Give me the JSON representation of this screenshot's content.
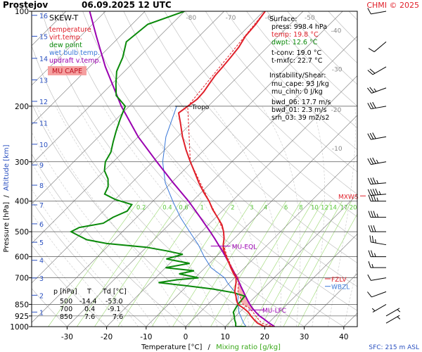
{
  "header": {
    "station": "Prostejov",
    "datetime": "06.09.2025 12 UTC",
    "copyright": "CHMI © 2025"
  },
  "legend": {
    "title": "SKEW-T",
    "items": [
      {
        "label": "temperature",
        "color": "#e0202a"
      },
      {
        "label": "virt.temp.",
        "color": "#e0202a"
      },
      {
        "label": "dew point",
        "color": "#0a8a0a"
      },
      {
        "label": "wet bulb temp.",
        "color": "#3a78d8"
      },
      {
        "label": "updraft v.temp.",
        "color": "#9a00b0"
      }
    ],
    "mucape_label": "MU CAPE",
    "mucape_color": "#f5a0a0"
  },
  "surface": {
    "title": "Surface:",
    "lines": [
      {
        "text": "press: 998.4 hPa",
        "color": "#000000"
      },
      {
        "text": "temp: 19.8 °C",
        "color": "#e0202a"
      },
      {
        "text": "dwpt: 12.6 °C",
        "color": "#0a8a0a"
      },
      {
        "text": "t-conv: 19.0 °C",
        "color": "#000000"
      },
      {
        "text": "t-mxfc: 22.7 °C",
        "color": "#000000"
      }
    ]
  },
  "instability": {
    "title": "Instability/Shear:",
    "lines": [
      "mu_cape: 93 J/kg",
      "mu_cinh: 0 J/kg",
      "bwd_06: 17.7 m/s",
      "bwd_01: 2.3 m/s",
      "srh_03: 39 m2/s2"
    ]
  },
  "table": {
    "headers": [
      "p [hPa]",
      "T",
      "Td [°C]"
    ],
    "rows": [
      [
        "500",
        "-14.4",
        "-53.0"
      ],
      [
        "700",
        "0.4",
        "-9.1"
      ],
      [
        "850",
        "7.6",
        "7.6"
      ]
    ]
  },
  "axes": {
    "ylabel_pressure": "Pressure [hPa]",
    "ylabel_separator": "/",
    "ylabel_altitude": "Altitude [km]",
    "xlabel_temperature": "Temperature [°C]",
    "xlabel_separator": "/",
    "xlabel_mixing": "Mixing ratio [g/kg]",
    "sfc": "SFC: 215 m ASL"
  },
  "colors": {
    "temperature": "#e0202a",
    "dewpoint": "#0a8a0a",
    "wetbulb": "#3a78d8",
    "parcel": "#9a00b0",
    "isotherm": "#777777",
    "dry_adiabat": "#b8b8b8",
    "moist_adiabat": "#c8c8c8",
    "mixing_ratio": "#9ad870",
    "mixing_label": "#58c838",
    "level_label": "#9a00b0",
    "mxws": "#e0202a",
    "fzlv": "#e0202a",
    "wbzl": "#3a78d8",
    "wind_barb": "#000000"
  },
  "chart_data": {
    "type": "skew-t",
    "pressure_ticks": [
      100,
      200,
      300,
      400,
      500,
      600,
      700,
      850,
      925,
      1000
    ],
    "altitude_ticks_km": [
      1,
      2,
      3,
      4,
      5,
      6,
      7,
      8,
      9,
      10,
      11,
      12,
      13,
      14,
      15,
      16
    ],
    "temperature_ticks": [
      -30,
      -20,
      -10,
      0,
      10,
      20,
      30,
      40
    ],
    "skewed_isotherm_labels": [
      -80,
      -70,
      -60,
      -50,
      -40,
      -30,
      -20,
      -10
    ],
    "mixing_ratio_labels": [
      "0.2",
      "0.4",
      "0.6",
      "1",
      "2",
      "3",
      "4",
      "6",
      "8",
      "10",
      "12",
      "14",
      "17",
      "20",
      "25"
    ],
    "temperature_profile": [
      [
        1000,
        22
      ],
      [
        998.4,
        19.8
      ],
      [
        975,
        17.3
      ],
      [
        950,
        15.5
      ],
      [
        925,
        13.8
      ],
      [
        900,
        12.2
      ],
      [
        875,
        10.1
      ],
      [
        850,
        7.6
      ],
      [
        825,
        6.2
      ],
      [
        800,
        5.0
      ],
      [
        775,
        3.6
      ],
      [
        750,
        2.6
      ],
      [
        725,
        1.6
      ],
      [
        700,
        0.4
      ],
      [
        675,
        -1.6
      ],
      [
        650,
        -3.5
      ],
      [
        625,
        -5.4
      ],
      [
        600,
        -7.4
      ],
      [
        575,
        -9.5
      ],
      [
        550,
        -11.2
      ],
      [
        525,
        -12.6
      ],
      [
        500,
        -14.4
      ],
      [
        475,
        -16.6
      ],
      [
        450,
        -19.6
      ],
      [
        425,
        -22.8
      ],
      [
        400,
        -25.8
      ],
      [
        375,
        -29.4
      ],
      [
        350,
        -33.0
      ],
      [
        325,
        -36.6
      ],
      [
        300,
        -40.5
      ],
      [
        275,
        -44.6
      ],
      [
        250,
        -48.8
      ],
      [
        225,
        -53.0
      ],
      [
        210,
        -55.8
      ],
      [
        200,
        -55.2
      ],
      [
        190,
        -54.6
      ],
      [
        180,
        -54.8
      ],
      [
        170,
        -55.4
      ],
      [
        160,
        -56.0
      ],
      [
        150,
        -56.3
      ],
      [
        140,
        -56.7
      ],
      [
        130,
        -57.2
      ],
      [
        120,
        -58.3
      ],
      [
        110,
        -58.7
      ],
      [
        100,
        -59.6
      ]
    ],
    "virtual_temperature_profile": [
      [
        1000,
        22.4
      ],
      [
        975,
        18.4
      ],
      [
        950,
        16.7
      ],
      [
        925,
        15.0
      ],
      [
        900,
        13.4
      ],
      [
        875,
        11.5
      ],
      [
        850,
        8.9
      ],
      [
        825,
        7.3
      ],
      [
        800,
        6.0
      ],
      [
        775,
        4.4
      ],
      [
        750,
        3.3
      ],
      [
        725,
        2.2
      ],
      [
        700,
        1.0
      ],
      [
        675,
        -1.2
      ],
      [
        650,
        -3.2
      ],
      [
        600,
        -7.2
      ],
      [
        550,
        -11.1
      ],
      [
        500,
        -14.4
      ],
      [
        450,
        -19.6
      ],
      [
        400,
        -25.8
      ],
      [
        300,
        -40.5
      ],
      [
        200,
        -55.2
      ],
      [
        100,
        -59.6
      ]
    ],
    "dewpoint_profile": [
      [
        1000,
        15.2
      ],
      [
        998.4,
        12.6
      ],
      [
        975,
        11.8
      ],
      [
        950,
        10.6
      ],
      [
        925,
        9.6
      ],
      [
        900,
        8.4
      ],
      [
        875,
        8.0
      ],
      [
        850,
        7.6
      ],
      [
        825,
        7.4
      ],
      [
        800,
        7.2
      ],
      [
        780,
        3.5
      ],
      [
        760,
        -2.5
      ],
      [
        740,
        -11.0
      ],
      [
        725,
        -18.0
      ],
      [
        710,
        -14.0
      ],
      [
        700,
        -9.1
      ],
      [
        680,
        -15.0
      ],
      [
        665,
        -12.0
      ],
      [
        650,
        -20.0
      ],
      [
        630,
        -15.0
      ],
      [
        610,
        -22.0
      ],
      [
        590,
        -19.0
      ],
      [
        575,
        -24.0
      ],
      [
        560,
        -30.0
      ],
      [
        545,
        -41.0
      ],
      [
        530,
        -47.0
      ],
      [
        515,
        -50.0
      ],
      [
        500,
        -53.0
      ],
      [
        485,
        -52.0
      ],
      [
        470,
        -47.0
      ],
      [
        450,
        -46.0
      ],
      [
        430,
        -44.0
      ],
      [
        410,
        -44.5
      ],
      [
        395,
        -50.0
      ],
      [
        380,
        -54.0
      ],
      [
        360,
        -55.0
      ],
      [
        340,
        -57.0
      ],
      [
        320,
        -60.0
      ],
      [
        300,
        -62.0
      ],
      [
        280,
        -63.0
      ],
      [
        260,
        -65.0
      ],
      [
        240,
        -67.0
      ],
      [
        220,
        -69.0
      ],
      [
        200,
        -71.0
      ],
      [
        185,
        -76.0
      ],
      [
        170,
        -79.0
      ],
      [
        155,
        -82.0
      ],
      [
        140,
        -84.0
      ],
      [
        125,
        -87.0
      ],
      [
        110,
        -86.0
      ],
      [
        100,
        -80.0
      ]
    ],
    "wetbulb_profile": [
      [
        998.4,
        15.2
      ],
      [
        975,
        13.8
      ],
      [
        950,
        12.5
      ],
      [
        925,
        11.2
      ],
      [
        900,
        9.8
      ],
      [
        875,
        8.8
      ],
      [
        850,
        7.6
      ],
      [
        825,
        6.5
      ],
      [
        800,
        5.6
      ],
      [
        775,
        3.6
      ],
      [
        750,
        1.5
      ],
      [
        725,
        -0.6
      ],
      [
        700,
        -2.5
      ],
      [
        650,
        -8.5
      ],
      [
        600,
        -13.0
      ],
      [
        550,
        -17.5
      ],
      [
        500,
        -23.0
      ],
      [
        450,
        -29.0
      ],
      [
        400,
        -35.0
      ],
      [
        350,
        -41.5
      ],
      [
        300,
        -47.5
      ],
      [
        250,
        -53.0
      ],
      [
        200,
        -58.0
      ]
    ],
    "parcel_profile": [
      [
        1000,
        22.5
      ],
      [
        975,
        20.3
      ],
      [
        950,
        18.2
      ],
      [
        925,
        16.0
      ],
      [
        900,
        14.1
      ],
      [
        875,
        12.3
      ],
      [
        850,
        10.6
      ],
      [
        825,
        9.0
      ],
      [
        800,
        7.4
      ],
      [
        775,
        5.8
      ],
      [
        750,
        4.1
      ],
      [
        725,
        2.4
      ],
      [
        700,
        0.6
      ],
      [
        675,
        -1.3
      ],
      [
        650,
        -3.3
      ],
      [
        625,
        -5.4
      ],
      [
        600,
        -7.6
      ],
      [
        575,
        -9.9
      ],
      [
        550,
        -12.4
      ],
      [
        525,
        -15.0
      ],
      [
        500,
        -17.8
      ],
      [
        450,
        -24.0
      ],
      [
        400,
        -31.0
      ],
      [
        350,
        -39.5
      ],
      [
        300,
        -49.0
      ],
      [
        250,
        -60.0
      ],
      [
        200,
        -72.0
      ],
      [
        150,
        -86.0
      ],
      [
        120,
        -96.0
      ],
      [
        100,
        -104.0
      ]
    ],
    "levels": {
      "tropopause": {
        "label": "Tropo",
        "pressure": 200
      },
      "mu_eql": {
        "label": "MU-EQL",
        "pressure": 555
      },
      "mu_lfc": {
        "label": "MU-LFC",
        "pressure": 885
      },
      "mxws": {
        "label": "MXWS",
        "pressure": 385
      },
      "fzlv": {
        "label": "FZLV",
        "pressure": 705
      },
      "wbzl": {
        "label": "WBZL",
        "pressure": 745
      }
    },
    "mu_cape_shading": "small positive area between parcel and environment, 880–560 hPa",
    "wind_barbs": [
      {
        "p": 975,
        "dir": 60,
        "spd": 5
      },
      {
        "p": 925,
        "dir": 60,
        "spd": 5
      },
      {
        "p": 850,
        "dir": 240,
        "spd": 5
      },
      {
        "p": 775,
        "dir": 250,
        "spd": 10
      },
      {
        "p": 700,
        "dir": 260,
        "spd": 10
      },
      {
        "p": 650,
        "dir": 270,
        "spd": 15
      },
      {
        "p": 600,
        "dir": 270,
        "spd": 25
      },
      {
        "p": 550,
        "dir": 280,
        "spd": 25
      },
      {
        "p": 500,
        "dir": 270,
        "spd": 30
      },
      {
        "p": 450,
        "dir": 270,
        "spd": 35
      },
      {
        "p": 400,
        "dir": 270,
        "spd": 35
      },
      {
        "p": 380,
        "dir": 265,
        "spd": 45
      },
      {
        "p": 350,
        "dir": 265,
        "spd": 35
      },
      {
        "p": 300,
        "dir": 260,
        "spd": 35
      },
      {
        "p": 250,
        "dir": 260,
        "spd": 30
      },
      {
        "p": 200,
        "dir": 260,
        "spd": 30
      },
      {
        "p": 175,
        "dir": 250,
        "spd": 25
      },
      {
        "p": 150,
        "dir": 240,
        "spd": 20
      },
      {
        "p": 125,
        "dir": 230,
        "spd": 10
      },
      {
        "p": 100,
        "dir": 260,
        "spd": 10
      }
    ]
  }
}
